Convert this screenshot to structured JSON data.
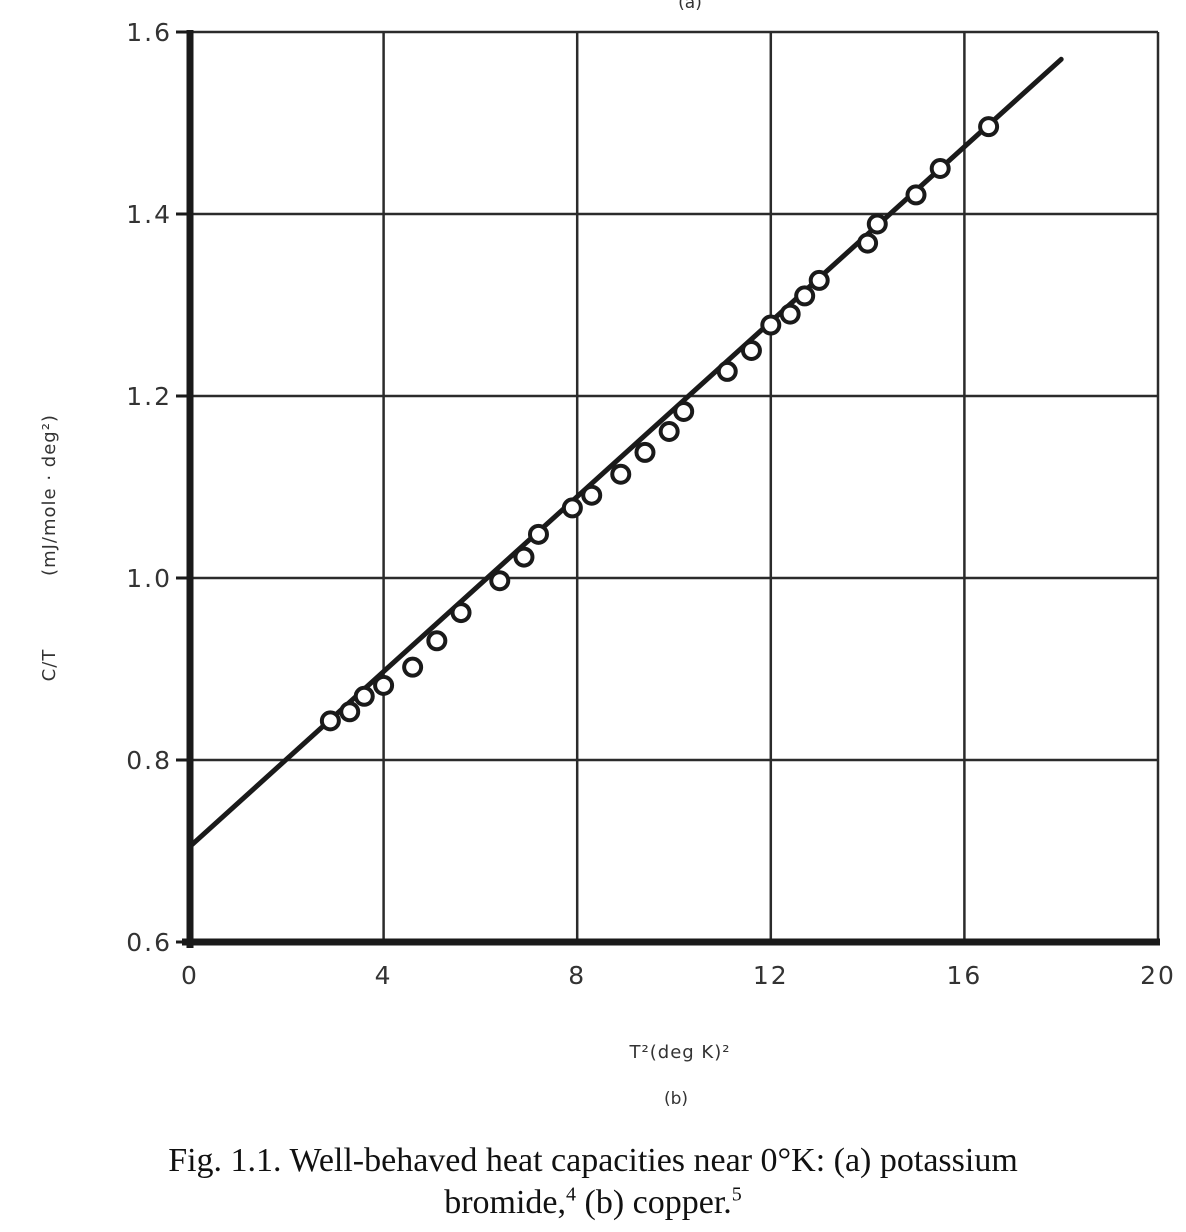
{
  "chart_data": {
    "type": "scatter",
    "top_label": "(a)",
    "panel_label": "(b)",
    "xlabel": "T²(deg K)²",
    "ylabel_symbol": "C/T",
    "ylabel_units": "(mJ/mole · deg²)",
    "x_ticks": [
      "0",
      "4",
      "8",
      "12",
      "16",
      "20"
    ],
    "y_ticks": [
      "0.6",
      "0.8",
      "1.0",
      "1.2",
      "1.4",
      "1.6"
    ],
    "xlim": [
      0,
      20
    ],
    "ylim": [
      0.6,
      1.6
    ],
    "grid": true,
    "fit_line": {
      "x": [
        0,
        18
      ],
      "y": [
        0.705,
        1.57
      ]
    },
    "points": {
      "x": [
        2.9,
        3.3,
        3.6,
        4.0,
        4.6,
        5.1,
        5.6,
        6.4,
        6.9,
        7.2,
        7.9,
        8.3,
        8.9,
        9.4,
        9.9,
        10.2,
        11.1,
        11.6,
        12.0,
        12.4,
        12.7,
        13.0,
        14.0,
        14.2,
        15.0,
        15.5,
        16.5
      ],
      "y": [
        0.843,
        0.853,
        0.87,
        0.882,
        0.902,
        0.931,
        0.962,
        0.997,
        1.023,
        1.048,
        1.077,
        1.091,
        1.114,
        1.138,
        1.161,
        1.183,
        1.227,
        1.25,
        1.278,
        1.29,
        1.31,
        1.327,
        1.368,
        1.389,
        1.421,
        1.45,
        1.496
      ]
    }
  },
  "caption": {
    "line1": "Fig. 1.1.  Well-behaved heat capacities near 0°K: (a) potassium",
    "line2_main": "bromide,",
    "line2_ref4": "4",
    "line2_rest": " (b) copper.",
    "line2_ref5": "5"
  }
}
